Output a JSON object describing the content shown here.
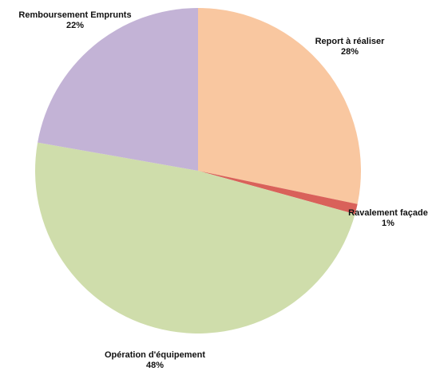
{
  "chart_data": {
    "type": "pie",
    "title": "",
    "slices": [
      {
        "label": "Report à réaliser",
        "value": 28,
        "pct_label": "28%",
        "color": "#F9C7A0"
      },
      {
        "label": "Ravalement façade",
        "value": 1,
        "pct_label": "1%",
        "color": "#D9615A"
      },
      {
        "label": "Opération d'équipement",
        "value": 48,
        "pct_label": "48%",
        "color": "#CFDDAB"
      },
      {
        "label": "Remboursement Emprunts",
        "value": 22,
        "pct_label": "22%",
        "color": "#C3B3D6"
      }
    ],
    "start_angle_deg": 0,
    "direction": "clockwise",
    "legend": "none",
    "labels_outside": true
  }
}
